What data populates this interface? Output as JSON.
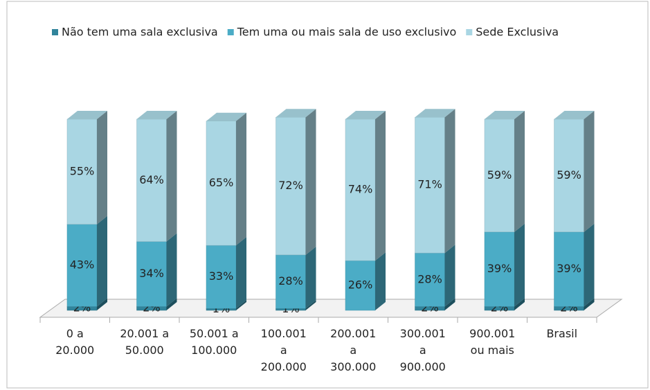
{
  "chart_data": {
    "type": "bar3d_stacked",
    "categories": [
      "0 a\n20.000",
      "20.001 a\n50.000",
      "50.001 a\n100.000",
      "100.001\na\n200.000",
      "200.001\na\n300.000",
      "300.001\na\n900.000",
      "900.001\nou mais",
      "Brasil"
    ],
    "ylim": [
      0,
      100
    ],
    "series": [
      {
        "name": "Não tem uma sala exclusiva",
        "color": "#31849b",
        "values": [
          2,
          2,
          1,
          1,
          0,
          2,
          2,
          2
        ],
        "value_labels": [
          "2%",
          "2%",
          "1%",
          "1%",
          null,
          "2%",
          "2%",
          "2%"
        ]
      },
      {
        "name": "Tem uma ou mais sala de uso exclusivo",
        "color": "#4bacc6",
        "values": [
          43,
          34,
          33,
          28,
          26,
          28,
          39,
          39
        ],
        "value_labels": [
          "43%",
          "34%",
          "33%",
          "28%",
          "26%",
          "28%",
          "39%",
          "39%"
        ]
      },
      {
        "name": "Sede Exclusiva",
        "color": "#a9d6e3",
        "values": [
          55,
          64,
          65,
          72,
          74,
          71,
          59,
          59
        ],
        "value_labels": [
          "55%",
          "64%",
          "65%",
          "72%",
          "74%",
          "71%",
          "59%",
          "59%"
        ]
      }
    ]
  }
}
